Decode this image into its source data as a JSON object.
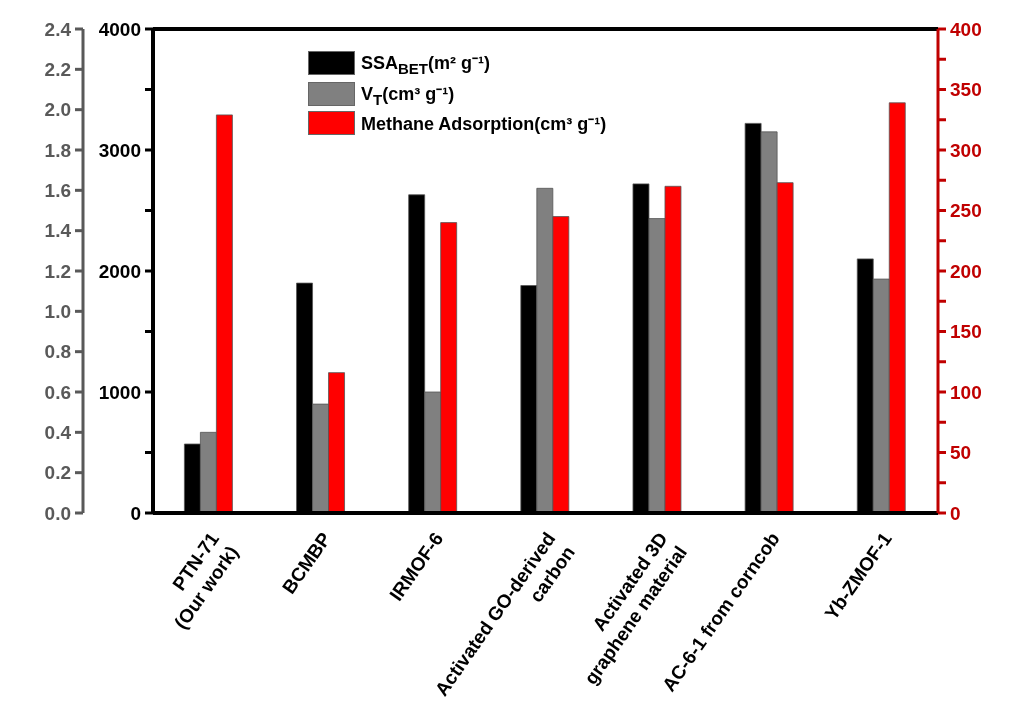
{
  "chart_data": {
    "type": "bar",
    "categories": [
      "PTN-71\n(Our work)",
      "BCMBP",
      "IRMOF-6",
      "Activated GO-derived\ncarbon",
      "Activated 3D\ngraphene material",
      "AC-6-1 from corncob",
      "Yb-ZMOF-1"
    ],
    "series": [
      {
        "name": "SSA$_{BET}$(m² g⁻¹)",
        "color": "#000000",
        "axis": "y",
        "values": [
          570,
          1900,
          2630,
          1880,
          2720,
          3220,
          2100
        ]
      },
      {
        "name": "V$_{T}$(cm³ g⁻¹)",
        "color": "#808080",
        "axis": "y3",
        "values": [
          0.4,
          0.54,
          0.6,
          1.61,
          1.46,
          1.89,
          1.16
        ]
      },
      {
        "name": "Methane Adsorption(cm³ g⁻¹)",
        "color": "#ff0000",
        "axis": "y2",
        "values": [
          329,
          116,
          240,
          245,
          270,
          273,
          339
        ]
      }
    ],
    "ylim": [
      0,
      4000
    ],
    "yticks": [
      0,
      {
        "value": 500,
        "label": null
      },
      1000,
      {
        "value": 1500,
        "label": null
      },
      2000,
      {
        "value": 2500,
        "label": null
      },
      3000,
      {
        "value": 3500,
        "label": null
      },
      4000
    ],
    "y2lim": [
      0,
      400
    ],
    "y2ticks": [
      0,
      {
        "value": 25,
        "label": null
      },
      50,
      {
        "value": 75,
        "label": null
      },
      100,
      {
        "value": 125,
        "label": null
      },
      150,
      {
        "value": 175,
        "label": null
      },
      200,
      {
        "value": 225,
        "label": null
      },
      250,
      {
        "value": 275,
        "label": null
      },
      300,
      {
        "value": 325,
        "label": null
      },
      350,
      {
        "value": 375,
        "label": null
      },
      400
    ],
    "y3lim": [
      0,
      2.4
    ],
    "y3ticks": [
      {
        "value": 0,
        "label": "0.0"
      },
      {
        "value": 0.2,
        "label": "0.2"
      },
      {
        "value": 0.4,
        "label": "0.4"
      },
      {
        "value": 0.6,
        "label": "0.6"
      },
      {
        "value": 0.8,
        "label": "0.8"
      },
      {
        "value": 1.0,
        "label": "1.0"
      },
      {
        "value": 1.2,
        "label": "1.2"
      },
      {
        "value": 1.4,
        "label": "1.4"
      },
      {
        "value": 1.6,
        "label": "1.6"
      },
      {
        "value": 1.8,
        "label": "1.8"
      },
      {
        "value": 2.0,
        "label": "2.0"
      },
      {
        "value": 2.2,
        "label": "2.2"
      },
      {
        "value": 2.4,
        "label": "2.4"
      }
    ],
    "grid": false,
    "legend": "top"
  }
}
